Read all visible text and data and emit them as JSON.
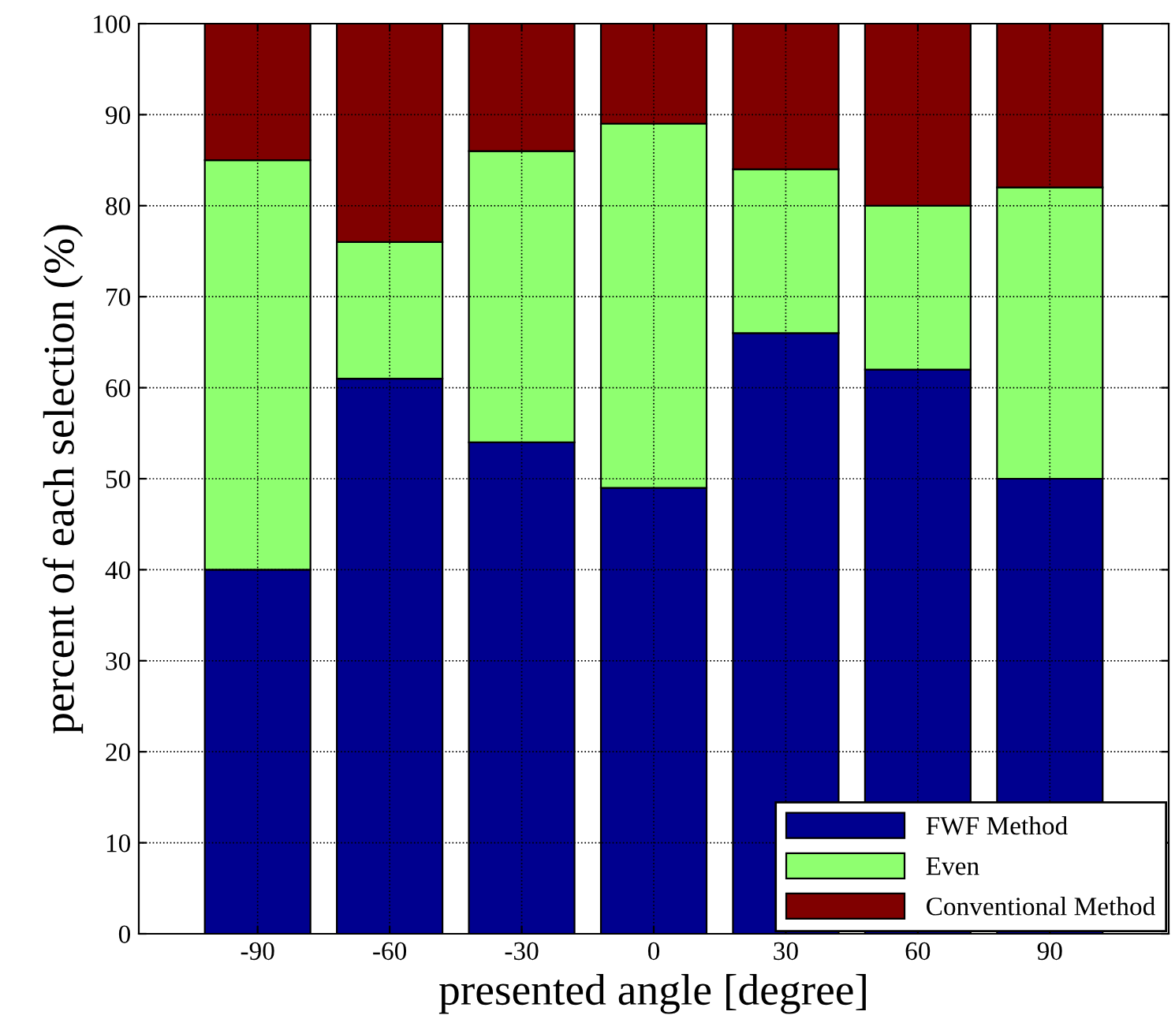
{
  "chart_data": {
    "type": "bar",
    "stacked": true,
    "xlabel": "presented angle [degree]",
    "ylabel": "percent of each selection (%)",
    "categories": [
      "-90",
      "-60",
      "-30",
      "0",
      "30",
      "60",
      "90"
    ],
    "series": [
      {
        "name": "FWF Method",
        "color": "#00008f",
        "values": [
          40,
          61,
          54,
          49,
          66,
          62,
          50
        ]
      },
      {
        "name": "Even",
        "color": "#8fff70",
        "values": [
          45,
          15,
          32,
          40,
          18,
          18,
          32
        ]
      },
      {
        "name": "Conventional Method",
        "color": "#800000",
        "values": [
          15,
          24,
          14,
          11,
          16,
          20,
          18
        ]
      }
    ],
    "ylim": [
      0,
      100
    ],
    "yticks": [
      0,
      10,
      20,
      30,
      40,
      50,
      60,
      70,
      80,
      90,
      100
    ],
    "grid": true,
    "legend": "bottom right"
  }
}
